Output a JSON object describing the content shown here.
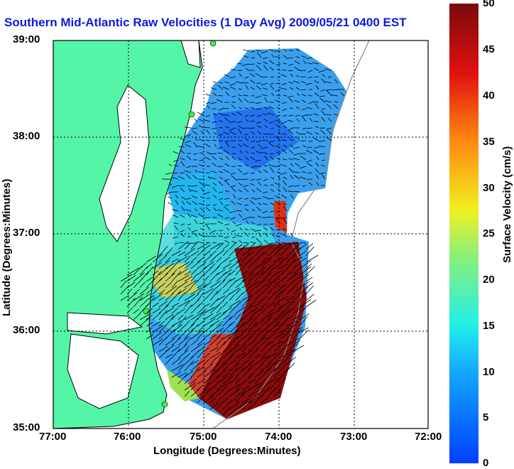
{
  "title": "Southern Mid-Atlantic Raw Velocities (1 Day Avg) 2009/05/21 0400 EST",
  "axes": {
    "xlabel": "Longitude (Degrees:Minutes)",
    "ylabel": "Latitude (Degrees:Minutes)",
    "x_ticks": [
      "77:00",
      "76:00",
      "75:00",
      "74:00",
      "73:00",
      "72:00"
    ],
    "y_ticks": [
      "39:00",
      "38:00",
      "37:00",
      "36:00",
      "35:00"
    ]
  },
  "colorbar": {
    "label": "Surface Velocity (cm/s)",
    "ticks": [
      "50",
      "45",
      "40",
      "35",
      "30",
      "25",
      "20",
      "15",
      "10",
      "5",
      "0"
    ],
    "range": [
      0,
      50
    ]
  },
  "colors": {
    "title": "#0a1adf",
    "land": "#55f5a8",
    "coastline": "#000000"
  }
}
